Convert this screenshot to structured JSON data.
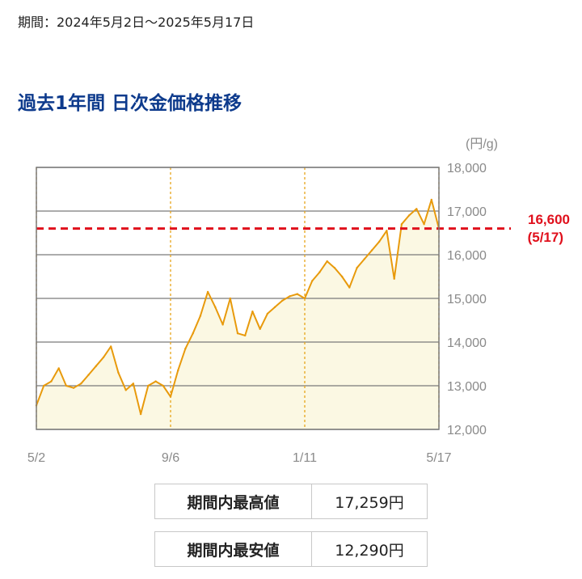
{
  "period_text": "期間：2024年5月2日～2025年5月17日",
  "title": "過去1年間 日次金価格推移",
  "stats": [
    {
      "label": "期間内最高値",
      "value": "17,259円"
    },
    {
      "label": "期間内最安値",
      "value": "12,290円"
    }
  ],
  "colors": {
    "line": "#e89a0c",
    "fill": "#fbf8e3",
    "ref": "#e0101c",
    "title": "#0d3a8c",
    "grid": "#7a7a7a",
    "axis_text": "#8a8a8a",
    "vline": "#e8a51a"
  },
  "chart_data": {
    "type": "area",
    "unit": "(円/g)",
    "ylim": [
      12000,
      18000
    ],
    "yticks": [
      12000,
      13000,
      14000,
      15000,
      16000,
      17000,
      18000
    ],
    "ytick_labels": [
      "12,000",
      "13,000",
      "14,000",
      "15,000",
      "16,000",
      "17,000",
      "18,000"
    ],
    "xtick_labels": [
      "5/2",
      "9/6",
      "1/11",
      "5/17"
    ],
    "x": [
      "5/2",
      "5/9",
      "5/16",
      "5/23",
      "5/30",
      "6/6",
      "6/13",
      "6/20",
      "6/27",
      "7/4",
      "7/11",
      "7/18",
      "7/25",
      "8/1",
      "8/8",
      "8/15",
      "8/22",
      "8/29",
      "9/6",
      "9/13",
      "9/20",
      "9/27",
      "10/4",
      "10/11",
      "10/18",
      "10/25",
      "11/1",
      "11/8",
      "11/15",
      "11/22",
      "11/29",
      "12/6",
      "12/13",
      "12/20",
      "12/27",
      "1/3",
      "1/11",
      "1/18",
      "1/25",
      "2/1",
      "2/8",
      "2/15",
      "2/22",
      "3/1",
      "3/8",
      "3/15",
      "3/22",
      "3/29",
      "4/5",
      "4/12",
      "4/19",
      "4/26",
      "5/3",
      "5/10",
      "5/17"
    ],
    "values": [
      12550,
      13000,
      13100,
      13400,
      13000,
      12950,
      13050,
      13250,
      13450,
      13650,
      13900,
      13300,
      12900,
      13050,
      12350,
      13000,
      13100,
      13000,
      12750,
      13350,
      13850,
      14200,
      14600,
      15150,
      14800,
      14400,
      15000,
      14200,
      14150,
      14700,
      14300,
      14650,
      14800,
      14950,
      15050,
      15100,
      15000,
      15400,
      15600,
      15850,
      15700,
      15500,
      15250,
      15700,
      15900,
      16100,
      16300,
      16550,
      15450,
      16700,
      16900,
      17050,
      16700,
      17259,
      16600
    ],
    "reference": {
      "value": 16600,
      "label": "16,600",
      "sublabel": "(5/17)"
    }
  }
}
